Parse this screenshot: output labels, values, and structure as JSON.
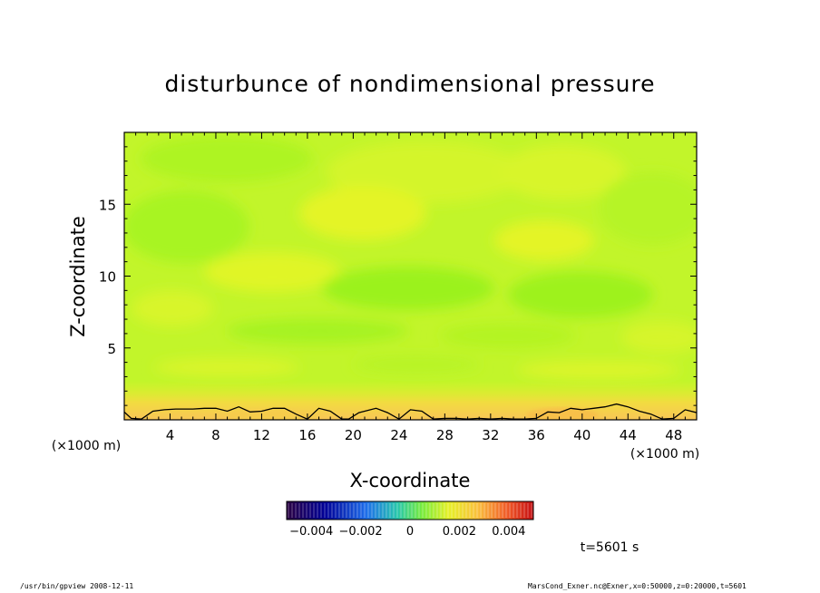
{
  "chart_data": {
    "type": "heatmap",
    "title": "disturbunce of nondimensional pressure",
    "xlabel": "X-coordinate",
    "ylabel": "Z-coordinate",
    "x_unit_left": "(×1000 m)",
    "x_unit_right": "(×1000 m)",
    "xlim": [
      0,
      50
    ],
    "ylim": [
      0,
      20
    ],
    "x_ticks": [
      4,
      8,
      12,
      16,
      20,
      24,
      28,
      32,
      36,
      40,
      44,
      48
    ],
    "y_ticks": [
      5,
      10,
      15
    ],
    "colorbar": {
      "range": [
        -0.005,
        0.005
      ],
      "tick_values": [
        -0.004,
        -0.002,
        0,
        0.002,
        0.004
      ],
      "tick_labels": [
        "−0.004",
        "−0.002",
        "0",
        "0.002",
        "0.004"
      ]
    },
    "zero_contour_x": [
      0,
      0.6,
      1.5,
      2.5,
      3.5,
      4.5,
      6,
      7,
      8,
      9,
      10,
      11,
      12,
      13,
      14,
      15,
      16,
      17,
      18,
      19,
      19.6,
      20.5,
      22,
      23,
      24,
      25,
      26,
      27,
      28,
      29,
      30,
      31,
      32,
      33,
      34,
      35,
      36,
      37,
      38,
      39,
      40,
      41,
      42,
      43,
      44,
      45,
      46,
      47,
      48,
      49,
      50
    ],
    "zero_contour_z": [
      0.55,
      0.1,
      0.05,
      0.6,
      0.7,
      0.75,
      0.75,
      0.8,
      0.8,
      0.6,
      0.9,
      0.55,
      0.6,
      0.8,
      0.8,
      0.4,
      0.05,
      0.8,
      0.6,
      0.05,
      0.05,
      0.5,
      0.8,
      0.5,
      0.05,
      0.7,
      0.6,
      0.05,
      0.1,
      0.1,
      0.05,
      0.1,
      0.05,
      0.1,
      0.05,
      0.05,
      0.1,
      0.55,
      0.5,
      0.8,
      0.7,
      0.8,
      0.9,
      1.1,
      0.9,
      0.6,
      0.4,
      0.05,
      0.1,
      0.7,
      0.5
    ],
    "timestamp": "t=5601 s"
  },
  "footer": {
    "left": "/usr/bin/gpview   2008-12-11",
    "right": "MarsCond_Exner.nc@Exner,x=0:50000,z=0:20000,t=5601"
  },
  "colors": {
    "field_base": "#c2f52a",
    "field_low": "#9bf21d",
    "field_high": "#e4f426",
    "surface": "#f6c84e",
    "contour": "#000000"
  }
}
